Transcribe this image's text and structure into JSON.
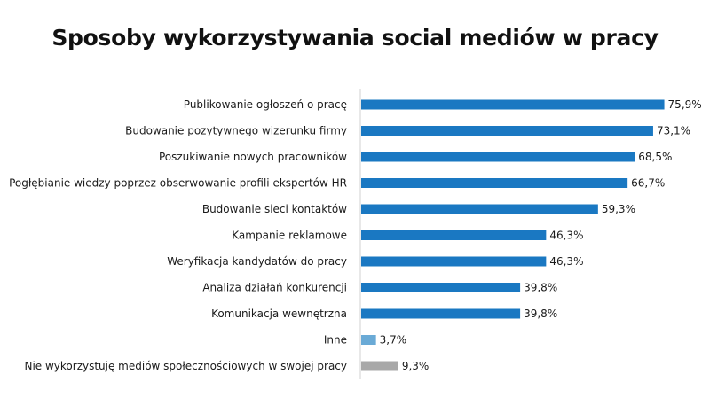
{
  "chart_data": {
    "type": "bar",
    "orientation": "horizontal",
    "title": "Sposoby wykorzystywania social mediów w pracy",
    "xlim": [
      0,
      80
    ],
    "grid": false,
    "categories": [
      "Publikowanie ogłoszeń o pracę",
      "Budowanie pozytywnego wizerunku firmy",
      "Poszukiwanie nowych pracowników",
      "Pogłębianie wiedzy poprzez obserwowanie profili ekspertów HR",
      "Budowanie sieci kontaktów",
      "Kampanie reklamowe",
      "Weryfikacja kandydatów do pracy",
      "Analiza działań konkurencji",
      "Komunikacja wewnętrzna",
      "Inne",
      "Nie wykorzystuję mediów społecznościowych w swojej pracy"
    ],
    "values": [
      75.9,
      73.1,
      68.5,
      66.7,
      59.3,
      46.3,
      46.3,
      39.8,
      39.8,
      3.7,
      9.3
    ],
    "value_labels": [
      "75,9%",
      "73,1%",
      "68,5%",
      "66,7%",
      "59,3%",
      "46,3%",
      "46,3%",
      "39,8%",
      "39,8%",
      "3,7%",
      "9,3%"
    ],
    "bar_colors": [
      "#1a78c2",
      "#1a78c2",
      "#1a78c2",
      "#1a78c2",
      "#1a78c2",
      "#1a78c2",
      "#1a78c2",
      "#1a78c2",
      "#1a78c2",
      "#6aaad6",
      "#a8a8a8"
    ],
    "axis_color": "#d0d0d0"
  }
}
